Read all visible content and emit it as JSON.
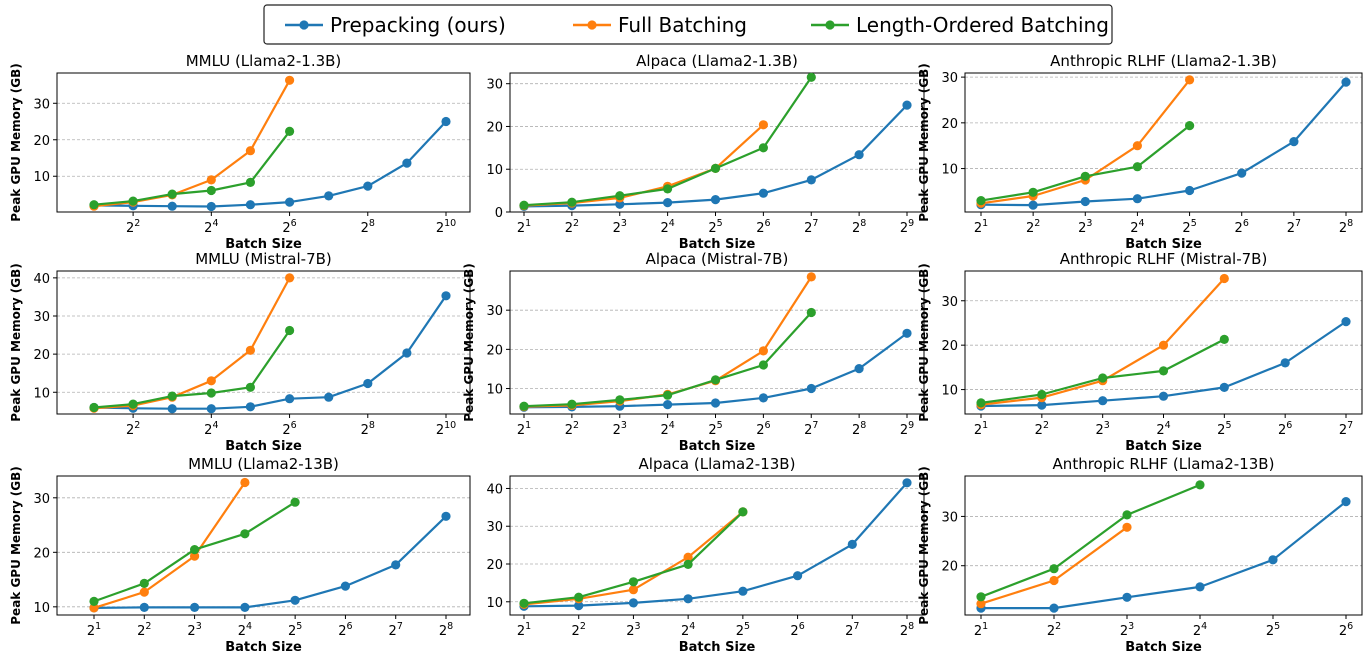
{
  "legend": {
    "entries": [
      {
        "label": "Prepacking (ours)",
        "color": "#1f77b4"
      },
      {
        "label": "Full Batching",
        "color": "#ff7f0e"
      },
      {
        "label": "Length-Ordered Batching",
        "color": "#2ca02c"
      }
    ],
    "placement": "top-center"
  },
  "chart_data": [
    {
      "type": "line",
      "title": "MMLU (Llama2-1.3B)",
      "xlabel": "Batch Size",
      "ylabel": "Peak GPU Memory (GB)",
      "xscale": "log2",
      "xticks": [
        4,
        16,
        64,
        256,
        1024
      ],
      "yticks": [
        10,
        20,
        30
      ],
      "ylim": [
        0.2,
        38.3
      ],
      "grid": "horizontal-dashed",
      "series": [
        {
          "name": "Prepacking (ours)",
          "x": [
            2,
            4,
            8,
            16,
            32,
            64,
            128,
            256,
            512,
            1024
          ],
          "y": [
            2.0,
            1.9,
            1.8,
            1.7,
            2.2,
            2.9,
            4.6,
            7.3,
            13.6,
            25.0
          ]
        },
        {
          "name": "Full Batching",
          "x": [
            2,
            4,
            8,
            16,
            32,
            64
          ],
          "y": [
            1.8,
            2.9,
            4.9,
            9.0,
            17.0,
            36.3
          ]
        },
        {
          "name": "Length-Ordered Batching",
          "x": [
            2,
            4,
            8,
            16,
            32,
            64
          ],
          "y": [
            2.2,
            3.2,
            5.1,
            6.1,
            8.3,
            22.3
          ]
        }
      ]
    },
    {
      "type": "line",
      "title": "Alpaca (Llama2-1.3B)",
      "xlabel": "Batch Size",
      "ylabel": "",
      "xscale": "log2",
      "xticks": [
        2,
        4,
        8,
        16,
        32,
        64,
        128,
        256,
        512
      ],
      "yticks": [
        0,
        10,
        20,
        30
      ],
      "ylim": [
        0,
        32.5
      ],
      "grid": "horizontal-dashed",
      "series": [
        {
          "name": "Prepacking (ours)",
          "x": [
            2,
            4,
            8,
            16,
            32,
            64,
            128,
            256,
            512
          ],
          "y": [
            1.3,
            1.5,
            1.8,
            2.2,
            2.9,
            4.4,
            7.5,
            13.4,
            25.0
          ]
        },
        {
          "name": "Full Batching",
          "x": [
            2,
            4,
            8,
            16,
            32,
            64
          ],
          "y": [
            1.5,
            2.1,
            3.3,
            6.0,
            10.2,
            20.4
          ]
        },
        {
          "name": "Length-Ordered Batching",
          "x": [
            2,
            4,
            8,
            16,
            32,
            64,
            128
          ],
          "y": [
            1.6,
            2.3,
            3.8,
            5.4,
            10.2,
            15.0,
            31.5
          ]
        }
      ]
    },
    {
      "type": "line",
      "title": "Anthropic RLHF (Llama2-1.3B)",
      "xlabel": "Batch Size",
      "ylabel": "Peak GPU Memory (GB)",
      "xscale": "log2",
      "xticks": [
        2,
        4,
        8,
        16,
        32,
        64,
        128,
        256
      ],
      "yticks": [
        10,
        20,
        30
      ],
      "ylim": [
        0.5,
        30.9
      ],
      "grid": "horizontal-dashed",
      "series": [
        {
          "name": "Prepacking (ours)",
          "x": [
            2,
            4,
            8,
            16,
            32,
            64,
            128,
            256
          ],
          "y": [
            2.1,
            2.0,
            2.8,
            3.4,
            5.2,
            9.0,
            15.9,
            28.9
          ]
        },
        {
          "name": "Full Batching",
          "x": [
            2,
            4,
            8,
            16,
            32
          ],
          "y": [
            2.4,
            4.0,
            7.5,
            15.0,
            29.4
          ]
        },
        {
          "name": "Length-Ordered Batching",
          "x": [
            2,
            4,
            8,
            16,
            32
          ],
          "y": [
            3.0,
            4.8,
            8.3,
            10.4,
            19.4
          ]
        }
      ]
    },
    {
      "type": "line",
      "title": "MMLU (Mistral-7B)",
      "xlabel": "Batch Size",
      "ylabel": "Peak GPU Memory (GB)",
      "xscale": "log2",
      "xticks": [
        4,
        16,
        64,
        256,
        1024
      ],
      "yticks": [
        10,
        20,
        30,
        40
      ],
      "ylim": [
        4.3,
        41.8
      ],
      "grid": "horizontal-dashed",
      "series": [
        {
          "name": "Prepacking (ours)",
          "x": [
            2,
            4,
            8,
            16,
            32,
            64,
            128,
            256,
            512,
            1024
          ],
          "y": [
            6.0,
            5.8,
            5.7,
            5.7,
            6.2,
            8.3,
            8.7,
            12.3,
            20.3,
            35.3
          ]
        },
        {
          "name": "Full Batching",
          "x": [
            2,
            4,
            8,
            16,
            32,
            64
          ],
          "y": [
            5.8,
            6.5,
            8.7,
            13.0,
            21.0,
            40.0
          ]
        },
        {
          "name": "Length-Ordered Batching",
          "x": [
            2,
            4,
            8,
            16,
            32,
            64
          ],
          "y": [
            6.0,
            6.9,
            9.0,
            9.8,
            11.3,
            26.2
          ]
        }
      ]
    },
    {
      "type": "line",
      "title": "Alpaca (Mistral-7B)",
      "xlabel": "Batch Size",
      "ylabel": "Peak GPU Memory (GB)",
      "xscale": "log2",
      "xticks": [
        2,
        4,
        8,
        16,
        32,
        64,
        128,
        256,
        512
      ],
      "yticks": [
        10,
        20,
        30
      ],
      "ylim": [
        3.5,
        40
      ],
      "grid": "horizontal-dashed",
      "series": [
        {
          "name": "Prepacking (ours)",
          "x": [
            2,
            4,
            8,
            16,
            32,
            64,
            128,
            256,
            512
          ],
          "y": [
            5.2,
            5.3,
            5.5,
            5.9,
            6.3,
            7.6,
            10.0,
            15.1,
            24.1
          ]
        },
        {
          "name": "Full Batching",
          "x": [
            2,
            4,
            8,
            16,
            32,
            64,
            128
          ],
          "y": [
            5.4,
            5.7,
            6.8,
            8.5,
            12.0,
            19.6,
            38.5
          ]
        },
        {
          "name": "Length-Ordered Batching",
          "x": [
            2,
            4,
            8,
            16,
            32,
            64,
            128
          ],
          "y": [
            5.5,
            6.0,
            7.1,
            8.3,
            12.2,
            16.0,
            29.4
          ]
        }
      ]
    },
    {
      "type": "line",
      "title": "Anthropic RLHF (Mistral-7B)",
      "xlabel": "Batch Size",
      "ylabel": "Peak GPU Memory (GB)",
      "xscale": "log2",
      "xticks": [
        2,
        4,
        8,
        16,
        32,
        64,
        128
      ],
      "yticks": [
        10,
        20,
        30
      ],
      "ylim": [
        4.5,
        36.7
      ],
      "grid": "horizontal-dashed",
      "series": [
        {
          "name": "Prepacking (ours)",
          "x": [
            2,
            4,
            8,
            16,
            32,
            64,
            128
          ],
          "y": [
            6.3,
            6.5,
            7.5,
            8.5,
            10.5,
            16.0,
            25.3
          ]
        },
        {
          "name": "Full Batching",
          "x": [
            2,
            4,
            8,
            16,
            32
          ],
          "y": [
            6.6,
            8.2,
            12.0,
            20.0,
            35.0
          ]
        },
        {
          "name": "Length-Ordered Batching",
          "x": [
            2,
            4,
            8,
            16,
            32
          ],
          "y": [
            7.0,
            8.9,
            12.6,
            14.2,
            21.3
          ]
        }
      ]
    },
    {
      "type": "line",
      "title": "MMLU (Llama2-13B)",
      "xlabel": "Batch Size",
      "ylabel": "Peak GPU Memory (GB)",
      "xscale": "log2",
      "xticks": [
        2,
        4,
        8,
        16,
        32,
        64,
        128,
        256
      ],
      "yticks": [
        10,
        20,
        30
      ],
      "ylim": [
        8.5,
        34.0
      ],
      "grid": "horizontal-dashed",
      "series": [
        {
          "name": "Prepacking (ours)",
          "x": [
            2,
            4,
            8,
            16,
            32,
            64,
            128,
            256
          ],
          "y": [
            9.8,
            9.9,
            9.9,
            9.9,
            11.2,
            13.8,
            17.7,
            26.6
          ]
        },
        {
          "name": "Full Batching",
          "x": [
            2,
            4,
            8,
            16
          ],
          "y": [
            9.8,
            12.7,
            19.3,
            32.8
          ]
        },
        {
          "name": "Length-Ordered Batching",
          "x": [
            2,
            4,
            8,
            16,
            32
          ],
          "y": [
            11.0,
            14.3,
            20.5,
            23.4,
            29.2
          ]
        }
      ]
    },
    {
      "type": "line",
      "title": "Alpaca (Llama2-13B)",
      "xlabel": "Batch Size",
      "ylabel": "",
      "xscale": "log2",
      "xticks": [
        2,
        4,
        8,
        16,
        32,
        64,
        128,
        256
      ],
      "yticks": [
        10,
        20,
        30,
        40
      ],
      "ylim": [
        6.5,
        43.3
      ],
      "grid": "horizontal-dashed",
      "series": [
        {
          "name": "Prepacking (ours)",
          "x": [
            2,
            4,
            8,
            16,
            32,
            64,
            128,
            256
          ],
          "y": [
            8.8,
            9.0,
            9.7,
            10.8,
            12.8,
            16.9,
            25.2,
            41.5
          ]
        },
        {
          "name": "Full Batching",
          "x": [
            2,
            4,
            8,
            16,
            32
          ],
          "y": [
            9.3,
            10.8,
            13.2,
            21.8,
            33.8
          ]
        },
        {
          "name": "Length-Ordered Batching",
          "x": [
            2,
            4,
            8,
            16,
            32
          ],
          "y": [
            9.6,
            11.2,
            15.3,
            19.9,
            33.8
          ]
        }
      ]
    },
    {
      "type": "line",
      "title": "Anthropic RLHF (Llama2-13B)",
      "xlabel": "Batch Size",
      "ylabel": "Peak GPU Memory (GB)",
      "xscale": "log2",
      "xticks": [
        2,
        4,
        8,
        16,
        32,
        64
      ],
      "yticks": [
        20,
        30
      ],
      "ylim": [
        10,
        38.2
      ],
      "grid": "horizontal-dashed",
      "series": [
        {
          "name": "Prepacking (ours)",
          "x": [
            2,
            4,
            8,
            16,
            32,
            64
          ],
          "y": [
            11.4,
            11.4,
            13.6,
            15.7,
            21.2,
            33.0
          ]
        },
        {
          "name": "Full Batching",
          "x": [
            2,
            4,
            8
          ],
          "y": [
            12.3,
            17.0,
            27.8
          ]
        },
        {
          "name": "Length-Ordered Batching",
          "x": [
            2,
            4,
            8,
            16
          ],
          "y": [
            13.7,
            19.4,
            30.3,
            36.4
          ]
        }
      ]
    }
  ]
}
